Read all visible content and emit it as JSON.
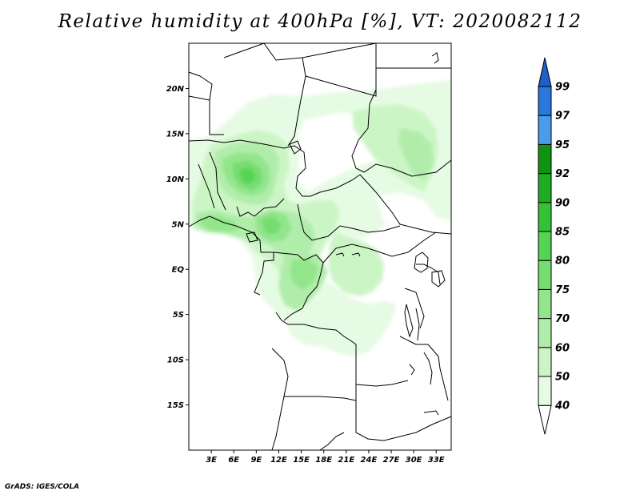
{
  "title": "Relative humidity at 400hPa [%], VT: 2020082112",
  "credit": "GrADS: IGES/COLA",
  "map": {
    "lat_labels": [
      "20N",
      "15N",
      "10N",
      "5N",
      "EQ",
      "5S",
      "10S",
      "15S"
    ],
    "lon_labels": [
      "3E",
      "6E",
      "9E",
      "12E",
      "15E",
      "18E",
      "21E",
      "24E",
      "27E",
      "30E",
      "33E"
    ],
    "extent": {
      "lon_min": 0,
      "lon_max": 35,
      "lat_min": -20,
      "lat_max": 25
    }
  },
  "colorbar": {
    "levels": [
      "40",
      "50",
      "60",
      "70",
      "75",
      "80",
      "85",
      "90",
      "92",
      "95",
      "97",
      "99"
    ],
    "colors": [
      "#ffffff",
      "#e6fbe3",
      "#ccf5c6",
      "#b0edaa",
      "#93e58c",
      "#75dd70",
      "#55d352",
      "#35c336",
      "#20ac22",
      "#0f9411",
      "#4a9be8",
      "#2a78dc",
      "#1e5fc8"
    ]
  }
}
